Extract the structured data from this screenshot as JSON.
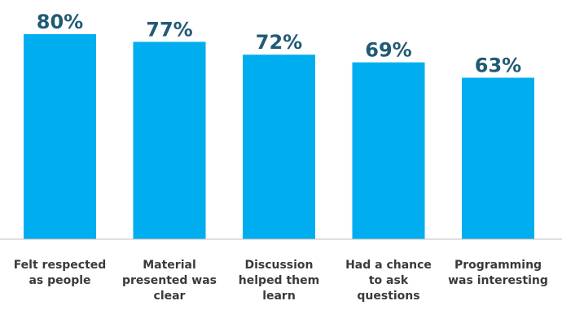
{
  "chart_data": {
    "type": "bar",
    "categories": [
      [
        "Felt respected",
        "as people"
      ],
      [
        "Material",
        "presented was",
        "clear"
      ],
      [
        "Discussion",
        "helped them",
        "learn"
      ],
      [
        "Had a chance",
        "to ask",
        "questions"
      ],
      [
        "Programming",
        "was interesting"
      ]
    ],
    "values": [
      80,
      77,
      72,
      69,
      63
    ],
    "value_labels": [
      "80%",
      "77%",
      "72%",
      "69%",
      "63%"
    ],
    "ylim": [
      0,
      100
    ],
    "grid": false,
    "legend": "none",
    "colors": {
      "bar": "#00aeef",
      "value_label": "#215a75",
      "category_label": "#3a3a3a",
      "axis": "#bfbfbf"
    }
  }
}
